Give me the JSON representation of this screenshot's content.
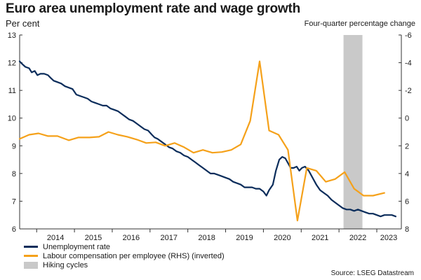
{
  "header": {
    "title": "Euro area unemployment rate and wage growth",
    "left_units": "Per cent",
    "right_units": "Four-quarter percentage change"
  },
  "source": "Source: LSEG Datastream",
  "colors": {
    "unemployment": "#0b2d5b",
    "wages": "#f5a11a",
    "hiking": "#c9c9c9"
  },
  "chart_data": {
    "type": "line",
    "x_range": [
      2013.55,
      2023.65
    ],
    "x_ticks": [
      2014,
      2015,
      2016,
      2017,
      2018,
      2019,
      2020,
      2021,
      2022,
      2023
    ],
    "y_left": {
      "range": [
        6,
        13
      ],
      "ticks": [
        6,
        7,
        8,
        9,
        10,
        11,
        12,
        13
      ]
    },
    "y_right": {
      "range": [
        8,
        -6
      ],
      "inverted": true,
      "ticks": [
        8,
        6,
        4,
        2,
        0,
        -2,
        -4,
        -6
      ]
    },
    "shaded": [
      {
        "name": "Hiking cycles",
        "from": 2022.12,
        "to": 2022.62
      }
    ],
    "series": [
      {
        "name": "Unemployment rate",
        "axis": "left",
        "points": [
          [
            2013.55,
            12.05
          ],
          [
            2013.62,
            11.95
          ],
          [
            2013.7,
            11.85
          ],
          [
            2013.8,
            11.8
          ],
          [
            2013.87,
            11.65
          ],
          [
            2013.95,
            11.7
          ],
          [
            2014.02,
            11.55
          ],
          [
            2014.1,
            11.6
          ],
          [
            2014.2,
            11.6
          ],
          [
            2014.3,
            11.55
          ],
          [
            2014.37,
            11.45
          ],
          [
            2014.45,
            11.35
          ],
          [
            2014.55,
            11.3
          ],
          [
            2014.65,
            11.25
          ],
          [
            2014.75,
            11.15
          ],
          [
            2014.85,
            11.1
          ],
          [
            2014.95,
            11.05
          ],
          [
            2015.05,
            10.85
          ],
          [
            2015.15,
            10.8
          ],
          [
            2015.25,
            10.75
          ],
          [
            2015.35,
            10.7
          ],
          [
            2015.45,
            10.6
          ],
          [
            2015.55,
            10.55
          ],
          [
            2015.65,
            10.5
          ],
          [
            2015.75,
            10.45
          ],
          [
            2015.85,
            10.45
          ],
          [
            2015.95,
            10.35
          ],
          [
            2016.05,
            10.3
          ],
          [
            2016.15,
            10.25
          ],
          [
            2016.25,
            10.15
          ],
          [
            2016.35,
            10.05
          ],
          [
            2016.45,
            9.95
          ],
          [
            2016.55,
            9.9
          ],
          [
            2016.65,
            9.8
          ],
          [
            2016.75,
            9.7
          ],
          [
            2016.85,
            9.6
          ],
          [
            2016.95,
            9.55
          ],
          [
            2017.05,
            9.4
          ],
          [
            2017.12,
            9.3
          ],
          [
            2017.2,
            9.25
          ],
          [
            2017.3,
            9.15
          ],
          [
            2017.4,
            9.05
          ],
          [
            2017.5,
            8.95
          ],
          [
            2017.6,
            8.9
          ],
          [
            2017.7,
            8.8
          ],
          [
            2017.8,
            8.75
          ],
          [
            2017.9,
            8.65
          ],
          [
            2018.0,
            8.6
          ],
          [
            2018.1,
            8.5
          ],
          [
            2018.2,
            8.4
          ],
          [
            2018.3,
            8.3
          ],
          [
            2018.4,
            8.2
          ],
          [
            2018.5,
            8.1
          ],
          [
            2018.6,
            8.0
          ],
          [
            2018.7,
            8.0
          ],
          [
            2018.8,
            7.95
          ],
          [
            2018.9,
            7.9
          ],
          [
            2019.0,
            7.85
          ],
          [
            2019.1,
            7.8
          ],
          [
            2019.2,
            7.7
          ],
          [
            2019.3,
            7.65
          ],
          [
            2019.4,
            7.6
          ],
          [
            2019.5,
            7.5
          ],
          [
            2019.6,
            7.5
          ],
          [
            2019.7,
            7.5
          ],
          [
            2019.8,
            7.45
          ],
          [
            2019.9,
            7.45
          ],
          [
            2020.0,
            7.35
          ],
          [
            2020.08,
            7.2
          ],
          [
            2020.15,
            7.4
          ],
          [
            2020.25,
            7.6
          ],
          [
            2020.33,
            8.1
          ],
          [
            2020.42,
            8.5
          ],
          [
            2020.5,
            8.6
          ],
          [
            2020.58,
            8.55
          ],
          [
            2020.66,
            8.35
          ],
          [
            2020.72,
            8.2
          ],
          [
            2020.8,
            8.2
          ],
          [
            2020.88,
            8.25
          ],
          [
            2020.95,
            8.1
          ],
          [
            2021.02,
            8.2
          ],
          [
            2021.1,
            8.25
          ],
          [
            2021.2,
            8.1
          ],
          [
            2021.3,
            7.85
          ],
          [
            2021.4,
            7.6
          ],
          [
            2021.5,
            7.4
          ],
          [
            2021.6,
            7.3
          ],
          [
            2021.7,
            7.2
          ],
          [
            2021.8,
            7.05
          ],
          [
            2021.9,
            6.95
          ],
          [
            2022.0,
            6.85
          ],
          [
            2022.1,
            6.75
          ],
          [
            2022.2,
            6.7
          ],
          [
            2022.3,
            6.7
          ],
          [
            2022.4,
            6.65
          ],
          [
            2022.5,
            6.7
          ],
          [
            2022.6,
            6.65
          ],
          [
            2022.7,
            6.6
          ],
          [
            2022.8,
            6.55
          ],
          [
            2022.9,
            6.55
          ],
          [
            2023.0,
            6.5
          ],
          [
            2023.1,
            6.45
          ],
          [
            2023.2,
            6.5
          ],
          [
            2023.3,
            6.5
          ],
          [
            2023.4,
            6.5
          ],
          [
            2023.5,
            6.45
          ]
        ]
      },
      {
        "name": "Labour compensation per employee (RHS) (inverted)",
        "axis": "right",
        "points": [
          [
            2013.55,
            1.5
          ],
          [
            2013.8,
            1.2
          ],
          [
            2014.05,
            1.1
          ],
          [
            2014.3,
            1.3
          ],
          [
            2014.55,
            1.3
          ],
          [
            2014.85,
            1.6
          ],
          [
            2015.1,
            1.4
          ],
          [
            2015.4,
            1.4
          ],
          [
            2015.65,
            1.35
          ],
          [
            2015.9,
            1.0
          ],
          [
            2016.15,
            1.2
          ],
          [
            2016.4,
            1.35
          ],
          [
            2016.65,
            1.55
          ],
          [
            2016.9,
            1.8
          ],
          [
            2017.15,
            1.75
          ],
          [
            2017.4,
            2.0
          ],
          [
            2017.65,
            1.8
          ],
          [
            2017.9,
            2.1
          ],
          [
            2018.15,
            2.5
          ],
          [
            2018.4,
            2.3
          ],
          [
            2018.65,
            2.5
          ],
          [
            2018.9,
            2.45
          ],
          [
            2019.15,
            2.3
          ],
          [
            2019.4,
            1.9
          ],
          [
            2019.65,
            0.2
          ],
          [
            2019.9,
            -4.1
          ],
          [
            2020.15,
            0.9
          ],
          [
            2020.4,
            1.2
          ],
          [
            2020.65,
            2.3
          ],
          [
            2020.9,
            7.4
          ],
          [
            2021.15,
            3.6
          ],
          [
            2021.4,
            3.8
          ],
          [
            2021.65,
            4.6
          ],
          [
            2021.9,
            4.4
          ],
          [
            2022.15,
            3.9
          ],
          [
            2022.4,
            5.1
          ],
          [
            2022.65,
            5.6
          ],
          [
            2022.9,
            5.6
          ],
          [
            2023.2,
            5.4
          ]
        ]
      }
    ],
    "legend": [
      {
        "label": "Unemployment rate",
        "kind": "line",
        "color": "#0b2d5b"
      },
      {
        "label": "Labour compensation per employee (RHS) (inverted)",
        "kind": "line",
        "color": "#f5a11a"
      },
      {
        "label": "Hiking cycles",
        "kind": "box",
        "color": "#c9c9c9"
      }
    ]
  }
}
